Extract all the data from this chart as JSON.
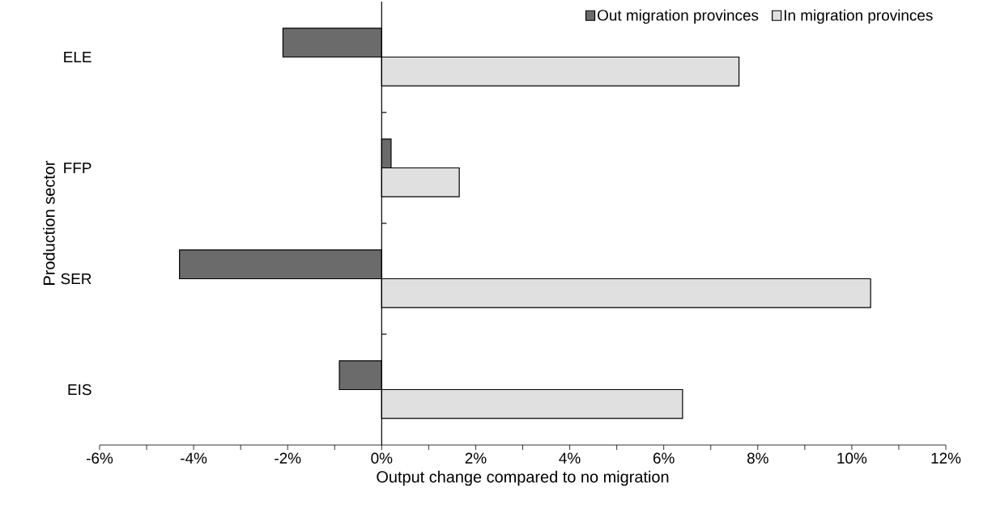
{
  "chart_data": {
    "type": "bar",
    "orientation": "horizontal",
    "xlabel": "Output change compared to no migration",
    "ylabel": "Production sector",
    "categories": [
      "ELE",
      "FFP",
      "SER",
      "EIS"
    ],
    "series": [
      {
        "name": "Out migration provinces",
        "color": "#6b6b6b",
        "values": [
          -2.1,
          0.2,
          -4.3,
          -0.9
        ]
      },
      {
        "name": "In migration provinces",
        "color": "#e0e0e0",
        "values": [
          7.6,
          1.65,
          10.4,
          6.4
        ]
      }
    ],
    "xlim": [
      -6,
      12
    ],
    "xticks": [
      {
        "value": -6,
        "label": "-6%"
      },
      {
        "value": -5,
        "label": null
      },
      {
        "value": -4,
        "label": "-4%"
      },
      {
        "value": -3,
        "label": null
      },
      {
        "value": -2,
        "label": "-2%"
      },
      {
        "value": -1,
        "label": null
      },
      {
        "value": 0,
        "label": "0%"
      },
      {
        "value": 1,
        "label": null
      },
      {
        "value": 2,
        "label": "2%"
      },
      {
        "value": 3,
        "label": null
      },
      {
        "value": 4,
        "label": "4%"
      },
      {
        "value": 5,
        "label": null
      },
      {
        "value": 6,
        "label": "6%"
      },
      {
        "value": 7,
        "label": null
      },
      {
        "value": 8,
        "label": "8%"
      },
      {
        "value": 9,
        "label": null
      },
      {
        "value": 10,
        "label": "10%"
      },
      {
        "value": 11,
        "label": null
      },
      {
        "value": 12,
        "label": "12%"
      }
    ],
    "legend": "top right"
  }
}
